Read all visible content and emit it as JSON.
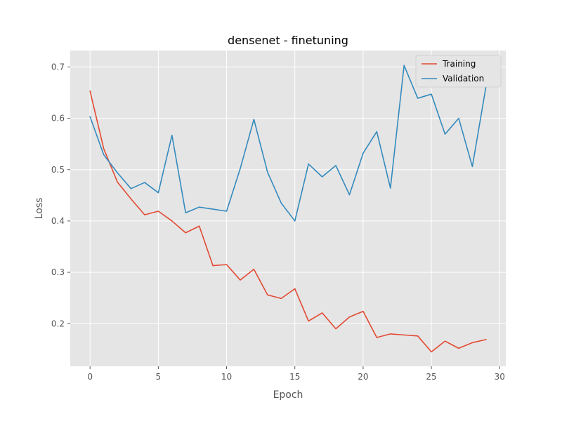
{
  "chart_data": {
    "type": "line",
    "title": "densenet - finetuning",
    "xlabel": "Epoch",
    "ylabel": "Loss",
    "xlim": [
      -1.45,
      30.45
    ],
    "ylim": [
      0.117,
      0.732
    ],
    "xticks": [
      0,
      5,
      10,
      15,
      20,
      25,
      30
    ],
    "yticks": [
      0.2,
      0.3,
      0.4,
      0.5,
      0.6,
      0.7
    ],
    "ytick_labels": [
      "0.2",
      "0.3",
      "0.4",
      "0.5",
      "0.6",
      "0.7"
    ],
    "grid": true,
    "legend_position": "top-right",
    "x": [
      0,
      1,
      2,
      3,
      4,
      5,
      6,
      7,
      8,
      9,
      10,
      11,
      12,
      13,
      14,
      15,
      16,
      17,
      18,
      19,
      20,
      21,
      22,
      23,
      24,
      25,
      26,
      27,
      28,
      29
    ],
    "series": [
      {
        "name": "Training",
        "color": "#E24A33",
        "values": [
          0.653,
          0.541,
          0.476,
          0.443,
          0.412,
          0.419,
          0.4,
          0.377,
          0.39,
          0.313,
          0.315,
          0.285,
          0.306,
          0.256,
          0.249,
          0.268,
          0.205,
          0.221,
          0.19,
          0.213,
          0.224,
          0.173,
          0.18,
          0.178,
          0.176,
          0.145,
          0.166,
          0.152,
          0.163,
          0.169
        ]
      },
      {
        "name": "Validation",
        "color": "#348ABD",
        "values": [
          0.603,
          0.529,
          0.494,
          0.463,
          0.475,
          0.455,
          0.567,
          0.416,
          0.427,
          0.423,
          0.419,
          0.502,
          0.598,
          0.495,
          0.435,
          0.4,
          0.511,
          0.486,
          0.508,
          0.451,
          0.532,
          0.574,
          0.464,
          0.703,
          0.639,
          0.647,
          0.569,
          0.6,
          0.506,
          0.662
        ]
      }
    ]
  }
}
